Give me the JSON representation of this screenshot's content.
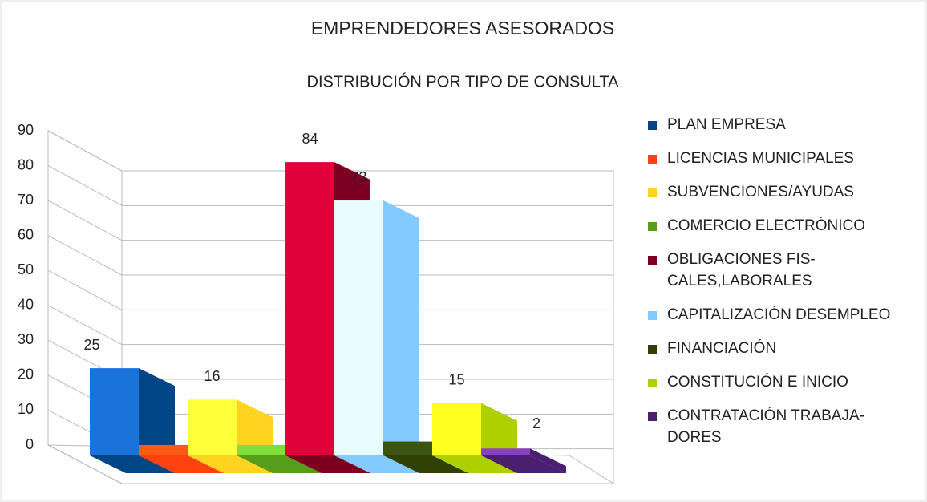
{
  "chart_data": {
    "type": "bar3d",
    "title": "EMPRENDEDORES ASESORADOS",
    "subtitle": "DISTRIBUCIÓN POR TIPO DE CONSULTA",
    "categories": [
      "PLAN EMPRESA",
      "LICENCIAS MUNICIPALES",
      "SUBVENCIONES/AYUDAS",
      "COMERCIO ELECTRÓNICO",
      "OBLIGACIONES FIS-\nCALES,LABORALES",
      "CAPITALIZACIÓN DESEMPLEO",
      "FINANCIACIÓN",
      "CONSTITUCIÓN E INICIO",
      "CONTRATACIÓN TRABAJA-\nDORES"
    ],
    "values": [
      25,
      3,
      16,
      3,
      84,
      73,
      4,
      15,
      2
    ],
    "colors": [
      "#1a73d9",
      "#ff5a14",
      "#ffff3a",
      "#7fe03a",
      "#e0003a",
      "#e8fbff",
      "#3b5410",
      "#ffff22",
      "#8a3fc0"
    ],
    "legend_colors": [
      "#004586",
      "#ff420e",
      "#ffd320",
      "#579d1c",
      "#7e0021",
      "#83caff",
      "#314004",
      "#aecf00",
      "#4b1f6f"
    ],
    "ylim": [
      0,
      90
    ],
    "yticks": [
      0,
      10,
      20,
      30,
      40,
      50,
      60,
      70,
      80,
      90
    ],
    "grid": true,
    "legend": "right"
  }
}
